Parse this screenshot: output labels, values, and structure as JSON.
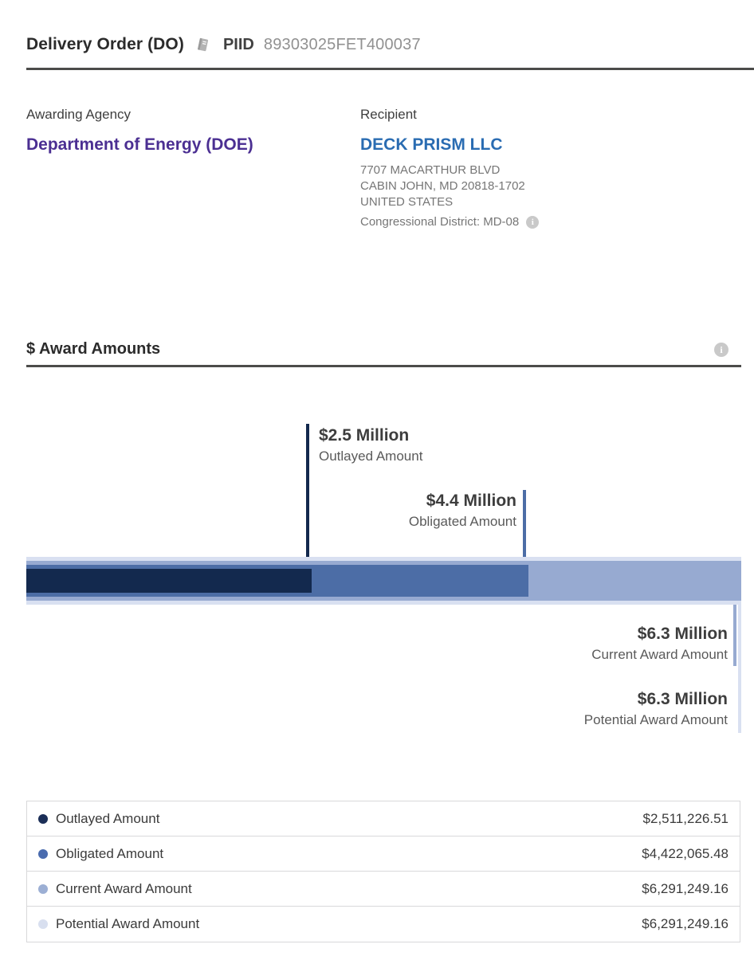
{
  "header": {
    "award_type": "Delivery Order (DO)",
    "piid_label": "PIID",
    "piid_value": "89303025FET400037"
  },
  "overview": {
    "awarding_agency": {
      "label": "Awarding Agency",
      "value": "Department of Energy (DOE)",
      "link_color": "#4b2f92"
    },
    "recipient": {
      "label": "Recipient",
      "name": "DECK PRISM LLC",
      "name_color": "#2a6cb2",
      "address_line1": "7707 MACARTHUR BLVD",
      "address_line2": "CABIN JOHN, MD 20818-1702",
      "address_line3": "UNITED STATES",
      "congressional_district": "Congressional District: MD-08",
      "info_icon_glyph": "i"
    }
  },
  "award_amounts": {
    "title": "$ Award Amounts",
    "info_icon_glyph": "i",
    "callouts": {
      "outlayed": {
        "value": "$2.5 Million",
        "label": "Outlayed Amount"
      },
      "obligated": {
        "value": "$4.4 Million",
        "label": "Obligated Amount"
      },
      "current": {
        "value": "$6.3 Million",
        "label": "Current Award Amount"
      },
      "potential": {
        "value": "$6.3 Million",
        "label": "Potential Award Amount"
      }
    },
    "legend_table": {
      "rows": [
        {
          "label": "Outlayed Amount",
          "amount": "$2,511,226.51",
          "dot_color": "#1b2e57"
        },
        {
          "label": "Obligated Amount",
          "amount": "$4,422,065.48",
          "dot_color": "#4a6bae"
        },
        {
          "label": "Current Award Amount",
          "amount": "$6,291,249.16",
          "dot_color": "#9cafd4"
        },
        {
          "label": "Potential Award Amount",
          "amount": "$6,291,249.16",
          "dot_color": "#d8dfef"
        }
      ]
    }
  },
  "chart_data": {
    "type": "bar",
    "orientation": "horizontal",
    "style": "overlapping-nested-bars",
    "title": "$ Award Amounts",
    "categories": [
      "Outlayed Amount",
      "Obligated Amount",
      "Current Award Amount",
      "Potential Award Amount"
    ],
    "values": [
      2511226.51,
      4422065.48,
      6291249.16,
      6291249.16
    ],
    "value_labels": [
      "$2.5 Million",
      "$4.4 Million",
      "$6.3 Million",
      "$6.3 Million"
    ],
    "colors": [
      "#13294e",
      "#4c6da6",
      "#97aad1",
      "#d9e0f1"
    ],
    "xlim": [
      0,
      6291249.16
    ],
    "legend_position": "bottom-table",
    "grid": false
  }
}
